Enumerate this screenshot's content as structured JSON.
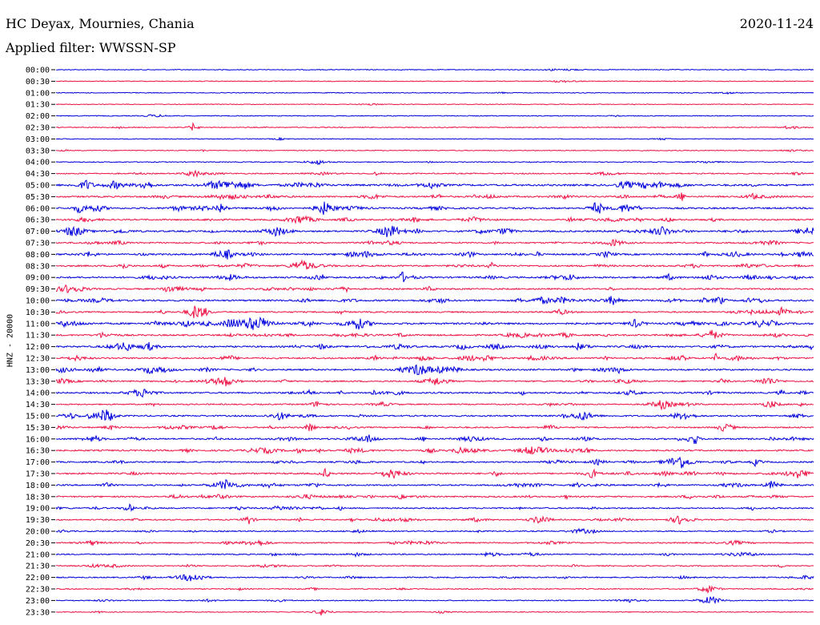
{
  "header": {
    "station": "HC Deyax, Mournies, Chania",
    "date": "2020-11-24",
    "filter_label": "Applied filter: WWSSN-SP"
  },
  "chart_data": {
    "type": "line",
    "ylabel": "HNZ - 20000",
    "row_labels": [
      "00:00",
      "00:30",
      "01:00",
      "01:30",
      "02:00",
      "02:30",
      "03:00",
      "03:30",
      "04:00",
      "04:30",
      "05:00",
      "05:30",
      "06:00",
      "06:30",
      "07:00",
      "07:30",
      "08:00",
      "08:30",
      "09:00",
      "09:30",
      "10:00",
      "10:30",
      "11:00",
      "11:30",
      "12:00",
      "12:30",
      "13:00",
      "13:30",
      "14:00",
      "14:30",
      "15:00",
      "15:30",
      "16:00",
      "16:30",
      "17:00",
      "17:30",
      "18:00",
      "18:30",
      "19:00",
      "19:30",
      "20:00",
      "20:30",
      "21:00",
      "21:30",
      "22:00",
      "22:30",
      "23:00",
      "23:30"
    ],
    "colors": [
      "#0000dd",
      "#ee1144"
    ],
    "activity": [
      0.08,
      0.06,
      0.08,
      0.04,
      0.1,
      0.14,
      0.05,
      0.1,
      0.14,
      0.3,
      0.75,
      0.55,
      0.6,
      0.45,
      0.6,
      0.45,
      0.6,
      0.55,
      0.6,
      0.5,
      0.6,
      0.45,
      0.7,
      0.55,
      0.6,
      0.55,
      0.55,
      0.45,
      0.55,
      0.35,
      0.5,
      0.45,
      0.55,
      0.5,
      0.45,
      0.55,
      0.45,
      0.45,
      0.4,
      0.35,
      0.3,
      0.35,
      0.3,
      0.25,
      0.3,
      0.2,
      0.2,
      0.1
    ]
  }
}
